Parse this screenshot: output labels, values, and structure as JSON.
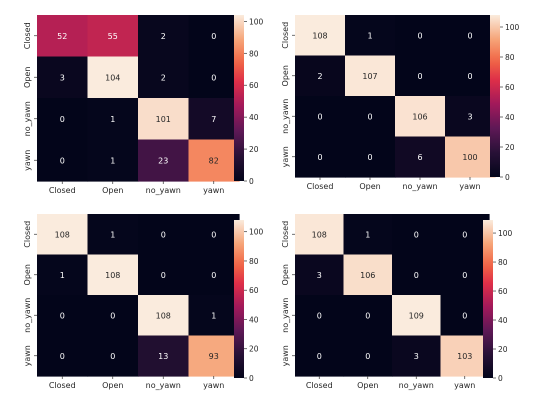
{
  "chart_data": [
    {
      "type": "heatmap",
      "categories": [
        "Closed",
        "Open",
        "no_yawn",
        "yawn"
      ],
      "values": [
        [
          52,
          55,
          2,
          0
        ],
        [
          3,
          104,
          2,
          0
        ],
        [
          0,
          1,
          101,
          7
        ],
        [
          0,
          1,
          23,
          82
        ]
      ],
      "colorbar": {
        "range": [
          0,
          104
        ],
        "ticks": [
          0,
          20,
          40,
          60,
          80,
          100
        ]
      }
    },
    {
      "type": "heatmap",
      "categories": [
        "Closed",
        "Open",
        "no_yawn",
        "yawn"
      ],
      "values": [
        [
          108,
          1,
          0,
          0
        ],
        [
          2,
          107,
          0,
          0
        ],
        [
          0,
          0,
          106,
          3
        ],
        [
          0,
          0,
          6,
          100
        ]
      ],
      "colorbar": {
        "range": [
          0,
          108
        ],
        "ticks": [
          0,
          20,
          40,
          60,
          80,
          100
        ]
      }
    },
    {
      "type": "heatmap",
      "categories": [
        "Closed",
        "Open",
        "no_yawn",
        "yawn"
      ],
      "values": [
        [
          108,
          1,
          0,
          0
        ],
        [
          1,
          108,
          0,
          0
        ],
        [
          0,
          0,
          108,
          1
        ],
        [
          0,
          0,
          13,
          93
        ]
      ],
      "colorbar": {
        "range": [
          0,
          108
        ],
        "ticks": [
          0,
          20,
          40,
          60,
          80,
          100
        ]
      }
    },
    {
      "type": "heatmap",
      "categories": [
        "Closed",
        "Open",
        "no_yawn",
        "yawn"
      ],
      "values": [
        [
          108,
          1,
          0,
          0
        ],
        [
          3,
          106,
          0,
          0
        ],
        [
          0,
          0,
          109,
          0
        ],
        [
          0,
          0,
          3,
          103
        ]
      ],
      "colorbar": {
        "range": [
          0,
          109
        ],
        "ticks": [
          0,
          20,
          40,
          60,
          80,
          100
        ]
      }
    }
  ]
}
